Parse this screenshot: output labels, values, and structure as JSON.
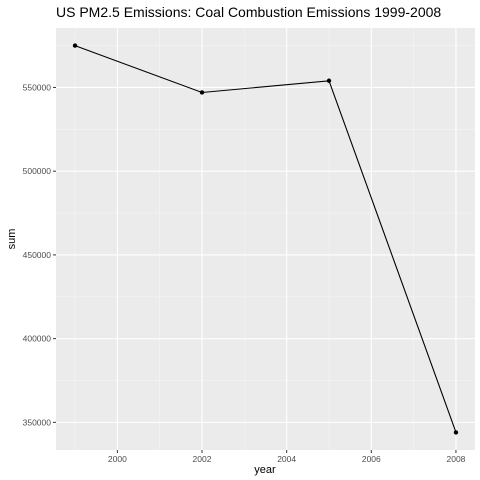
{
  "chart_data": {
    "type": "line",
    "title": "US PM2.5 Emissions: Coal Combustion Emissions 1999-2008",
    "xlabel": "year",
    "ylabel": "sum",
    "x": [
      1999,
      2002,
      2005,
      2008
    ],
    "series": [
      {
        "values": [
          575000,
          547000,
          554000,
          344000
        ]
      }
    ],
    "xlim": [
      1998.55,
      2008.45
    ],
    "ylim": [
      333500,
      585500
    ],
    "x_ticks": [
      2000,
      2002,
      2004,
      2006,
      2008
    ],
    "x_tick_labels": [
      "2000",
      "2002",
      "2004",
      "2006",
      "2008"
    ],
    "y_ticks": [
      350000,
      400000,
      450000,
      500000,
      550000
    ],
    "y_tick_labels": [
      "350000",
      "400000",
      "450000",
      "500000",
      "550000"
    ],
    "grid": true,
    "legend": "none",
    "colors": {
      "panel": "#ebebeb",
      "grid_major": "#ffffff",
      "line": "#000000",
      "point": "#000000"
    }
  }
}
